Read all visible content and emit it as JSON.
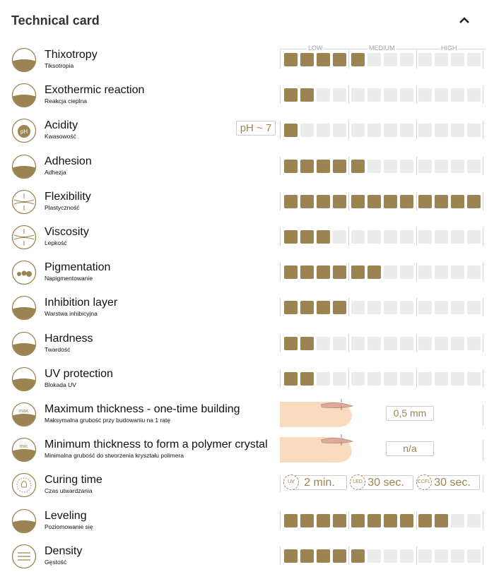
{
  "header": {
    "title": "Technical card",
    "collapse_icon": "chevron-up-icon"
  },
  "scale": {
    "labels": [
      "LOW",
      "MEDIUM",
      "HIGH"
    ],
    "max": 12
  },
  "colors": {
    "accent": "#9c8352",
    "empty": "#ececec"
  },
  "rows": [
    {
      "name": "Thixotropy",
      "sub": "Tiksotropia",
      "icon": "thixotropy-icon",
      "level": 5
    },
    {
      "name": "Exothermic reaction",
      "sub": "Reakcja cieplna",
      "icon": "heat-icon",
      "level": 2
    },
    {
      "name": "Acidity",
      "sub": "Kwasowość",
      "icon": "ph-icon",
      "level": 1,
      "badge": "pH ~ 7",
      "icon_text": "pH"
    },
    {
      "name": "Adhesion",
      "sub": "Adhezja",
      "icon": "adhesion-icon",
      "level": 5
    },
    {
      "name": "Flexibility",
      "sub": "Plastyczność",
      "icon": "flexibility-icon",
      "level": 12
    },
    {
      "name": "Viscosity",
      "sub": "Lepkość",
      "icon": "viscosity-icon",
      "level": 3
    },
    {
      "name": "Pigmentation",
      "sub": "Napigmentowanie",
      "icon": "pigment-drops-icon",
      "level": 6
    },
    {
      "name": "Inhibition layer",
      "sub": "Warstwa inhibicyjna",
      "icon": "inhibition-layer-icon",
      "level": 4
    },
    {
      "name": "Hardness",
      "sub": "Twardość",
      "icon": "hammer-icon",
      "level": 2
    },
    {
      "name": "UV protection",
      "sub": "Blokada UV",
      "icon": "uv-protection-icon",
      "level": 2
    },
    {
      "name": "Maximum thickness - one-time building",
      "sub": "Maksymalna grubość przy budowaniu na 1 ratę",
      "icon": "max-thickness-icon",
      "icon_text": "max.",
      "value": "0,5 mm"
    },
    {
      "name": "Minimum thickness to form a polymer crystal",
      "sub": "Minimalna grubość do stworzenia kryształu polimera",
      "icon": "min-thickness-icon",
      "icon_text": "min.",
      "value": "n/a"
    },
    {
      "name": "Curing time",
      "sub": "Czas utwardzania",
      "icon": "lamp-icon",
      "curing": [
        {
          "lamp": "UV",
          "time": "2 min."
        },
        {
          "lamp": "LED",
          "time": "30 sec."
        },
        {
          "lamp": "CCFL",
          "time": "30 sec."
        }
      ]
    },
    {
      "name": "Leveling",
      "sub": "Poziomowanie się",
      "icon": "leveling-icon",
      "level": 10
    },
    {
      "name": "Density",
      "sub": "Gęstość",
      "icon": "density-icon",
      "level": 5
    }
  ]
}
